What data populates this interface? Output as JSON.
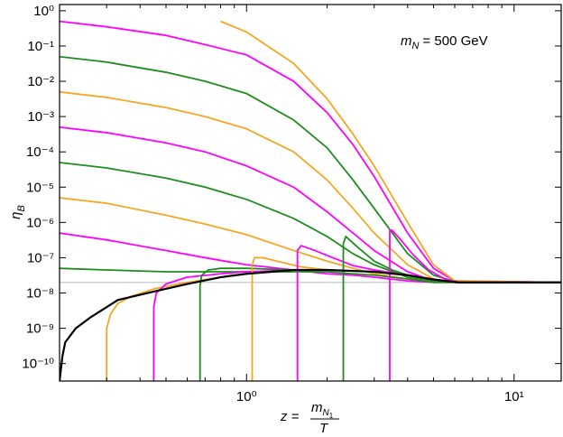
{
  "chart_data": {
    "type": "line",
    "log_x": true,
    "log_y": true,
    "xlim": [
      0.2,
      15
    ],
    "ylim": [
      3.2e-11,
      1.5
    ],
    "xticks": [
      {
        "value": 1,
        "label": "10⁰"
      },
      {
        "value": 10,
        "label": "10¹"
      }
    ],
    "xminorticks": [
      0.3,
      0.4,
      0.5,
      0.6,
      0.7,
      0.8,
      0.9,
      2,
      3,
      4,
      5,
      6,
      7,
      8,
      9
    ],
    "yticks": [
      {
        "value": 1,
        "label": "10⁰"
      },
      {
        "value": 0.1,
        "label": "10⁻¹"
      },
      {
        "value": 0.01,
        "label": "10⁻²"
      },
      {
        "value": 0.001,
        "label": "10⁻³"
      },
      {
        "value": 0.0001,
        "label": "10⁻⁴"
      },
      {
        "value": 1e-05,
        "label": "10⁻⁵"
      },
      {
        "value": 1e-06,
        "label": "10⁻⁶"
      },
      {
        "value": 1e-07,
        "label": "10⁻⁷"
      },
      {
        "value": 1e-08,
        "label": "10⁻⁸"
      },
      {
        "value": 1e-09,
        "label": "10⁻⁹"
      },
      {
        "value": 1e-10,
        "label": "10⁻¹⁰"
      }
    ],
    "xlabel": {
      "lhs": "z =",
      "numerator": "m",
      "numerator_sub": "N",
      "numerator_subsub": "1",
      "denominator": "T"
    },
    "ylabel": {
      "symbol": "η",
      "sub": "B"
    },
    "annotation": {
      "symbol": "m",
      "sub": "N",
      "text": "= 500 GeV"
    },
    "hline": {
      "value": 2e-08,
      "color": "#d0d0d0"
    },
    "series": [
      {
        "color": "#ff00ff",
        "x": [
          0.2,
          0.3,
          0.5,
          0.7,
          1,
          1.5,
          2,
          2.5,
          3,
          4,
          5,
          6,
          15
        ],
        "values": [
          0.5,
          0.35,
          0.2,
          0.11,
          0.056,
          0.01,
          0.0013,
          0.00016,
          2e-05,
          5e-07,
          5e-08,
          2.2e-08,
          2e-08
        ]
      },
      {
        "color": "#1e8c1e",
        "x": [
          0.2,
          0.3,
          0.5,
          0.7,
          1,
          1.5,
          2,
          2.5,
          3,
          4,
          5,
          6,
          15
        ],
        "values": [
          0.05,
          0.035,
          0.018,
          0.01,
          0.0045,
          0.0008,
          0.00013,
          1.6e-05,
          2.5e-06,
          1.3e-07,
          3.2e-08,
          2.1e-08,
          2e-08
        ]
      },
      {
        "color": "#f5a623",
        "x": [
          0.2,
          0.3,
          0.5,
          0.7,
          1,
          1.5,
          2,
          2.5,
          3,
          4,
          5,
          6,
          15
        ],
        "values": [
          0.005,
          0.0035,
          0.0018,
          0.001,
          0.00045,
          0.0001,
          1.6e-05,
          2.5e-06,
          5e-07,
          6.3e-08,
          2.5e-08,
          2e-08,
          2e-08
        ]
      },
      {
        "color": "#ff00ff",
        "x": [
          0.2,
          0.3,
          0.5,
          0.7,
          1,
          1.5,
          2,
          2.5,
          3,
          4,
          5,
          6,
          15
        ],
        "values": [
          0.0005,
          0.00035,
          0.00018,
          0.0001,
          4e-05,
          1e-05,
          2e-06,
          5e-07,
          1.6e-07,
          4e-08,
          2.2e-08,
          2e-08,
          2e-08
        ]
      },
      {
        "color": "#1e8c1e",
        "x": [
          0.2,
          0.3,
          0.5,
          0.7,
          1,
          1.5,
          2,
          2.5,
          3,
          4,
          5,
          6,
          15
        ],
        "values": [
          5e-05,
          3.5e-05,
          1.8e-05,
          1e-05,
          4.5e-06,
          1.3e-06,
          4e-07,
          1.3e-07,
          6.3e-08,
          2.8e-08,
          2.1e-08,
          2e-08,
          2e-08
        ]
      },
      {
        "color": "#f5a623",
        "x": [
          0.2,
          0.3,
          0.5,
          0.7,
          1,
          1.5,
          2,
          2.5,
          3,
          4,
          5,
          6,
          15
        ],
        "values": [
          5e-06,
          3.5e-06,
          1.6e-06,
          9e-07,
          4.5e-07,
          1.6e-07,
          8e-08,
          5e-08,
          3.5e-08,
          2.5e-08,
          2e-08,
          2e-08,
          2e-08
        ]
      },
      {
        "color": "#ff00ff",
        "x": [
          0.2,
          0.3,
          0.5,
          0.7,
          1,
          1.5,
          2,
          2.5,
          3,
          4,
          5,
          6,
          15
        ],
        "values": [
          5e-07,
          3.2e-07,
          1.6e-07,
          1e-07,
          6.3e-08,
          4.5e-08,
          3.5e-08,
          3.2e-08,
          2.8e-08,
          2.2e-08,
          2e-08,
          2e-08,
          2e-08
        ]
      },
      {
        "color": "#1e8c1e",
        "x": [
          0.2,
          0.3,
          0.5,
          0.7,
          1,
          1.5,
          2,
          2.5,
          3,
          4,
          5,
          6,
          15
        ],
        "values": [
          5e-08,
          4.5e-08,
          4e-08,
          4e-08,
          4e-08,
          4e-08,
          4e-08,
          3.5e-08,
          3.2e-08,
          2.5e-08,
          2e-08,
          2e-08,
          2e-08
        ]
      },
      {
        "color": "#f5a623",
        "x": [
          0.8,
          1,
          1.5,
          2,
          2.5,
          3,
          4,
          5,
          6,
          15
        ],
        "values": [
          0.5,
          0.25,
          0.032,
          0.0032,
          0.00032,
          4e-05,
          1e-06,
          6.3e-08,
          2.2e-08,
          2e-08
        ]
      },
      {
        "color": "#f5a623",
        "x": [
          0.3,
          0.3,
          0.31,
          0.33,
          0.37,
          0.45,
          0.6,
          0.8,
          1,
          1.5,
          2,
          3,
          4,
          6,
          15
        ],
        "values": [
          3.2e-11,
          1e-09,
          2.5e-09,
          5e-09,
          8e-09,
          1.3e-08,
          2e-08,
          2.8e-08,
          3.5e-08,
          4.5e-08,
          4.5e-08,
          4e-08,
          3.2e-08,
          2e-08,
          2e-08
        ]
      },
      {
        "color": "#ff00ff",
        "x": [
          0.45,
          0.45,
          0.46,
          0.5,
          0.6,
          0.8,
          1,
          1.5,
          2,
          3,
          4,
          6,
          15
        ],
        "values": [
          3.2e-11,
          4e-09,
          1e-08,
          1.8e-08,
          2.8e-08,
          3.5e-08,
          4e-08,
          4.5e-08,
          4.5e-08,
          4e-08,
          3.2e-08,
          2e-08,
          2e-08
        ]
      },
      {
        "color": "#1e8c1e",
        "x": [
          0.67,
          0.67,
          0.68,
          0.72,
          0.8,
          1,
          1.5,
          2,
          3,
          4,
          6,
          15
        ],
        "values": [
          3.2e-11,
          1.6e-08,
          3.2e-08,
          4.5e-08,
          5e-08,
          5e-08,
          4.5e-08,
          4.5e-08,
          4e-08,
          3.2e-08,
          2e-08,
          2e-08
        ]
      },
      {
        "color": "#f5a623",
        "x": [
          1.05,
          1.05,
          1.07,
          1.15,
          1.3,
          1.6,
          2,
          3,
          4,
          6,
          15
        ],
        "values": [
          3.2e-11,
          6e-08,
          1e-07,
          1e-07,
          8e-08,
          5.5e-08,
          4.5e-08,
          4e-08,
          3.2e-08,
          2e-08,
          2e-08
        ]
      },
      {
        "color": "#ff00ff",
        "x": [
          1.55,
          1.55,
          1.6,
          1.8,
          2.1,
          2.5,
          3,
          4,
          6,
          15
        ],
        "values": [
          3.2e-11,
          1.6e-07,
          2.2e-07,
          1.6e-07,
          1e-07,
          6e-08,
          4.5e-08,
          3.2e-08,
          2e-08,
          2e-08
        ]
      },
      {
        "color": "#1e8c1e",
        "x": [
          2.3,
          2.3,
          2.35,
          2.6,
          3,
          3.5,
          4,
          5,
          6,
          15
        ],
        "values": [
          3.2e-11,
          2.5e-07,
          4e-07,
          2e-07,
          8e-08,
          4.5e-08,
          3.2e-08,
          2.3e-08,
          2e-08,
          2e-08
        ]
      },
      {
        "color": "#ff00ff",
        "x": [
          3.43,
          3.43,
          3.5,
          3.8,
          4.2,
          4.8,
          5.5,
          6.2,
          15
        ],
        "values": [
          3.2e-11,
          6e-07,
          6e-07,
          3e-07,
          1.2e-07,
          4.5e-08,
          2.5e-08,
          2e-08,
          2e-08
        ]
      },
      {
        "color": "#000000",
        "x": [
          0.2,
          0.205,
          0.21,
          0.23,
          0.26,
          0.33,
          0.45,
          0.6,
          0.8,
          1,
          1.5,
          2,
          3,
          4,
          5,
          6.2,
          15
        ],
        "values": [
          3.2e-11,
          1.6e-10,
          4e-10,
          1e-09,
          2e-09,
          6.3e-09,
          1.1e-08,
          1.8e-08,
          2.8e-08,
          3.5e-08,
          4.5e-08,
          4.5e-08,
          4e-08,
          3.2e-08,
          2.4e-08,
          2e-08,
          2e-08
        ]
      }
    ]
  }
}
